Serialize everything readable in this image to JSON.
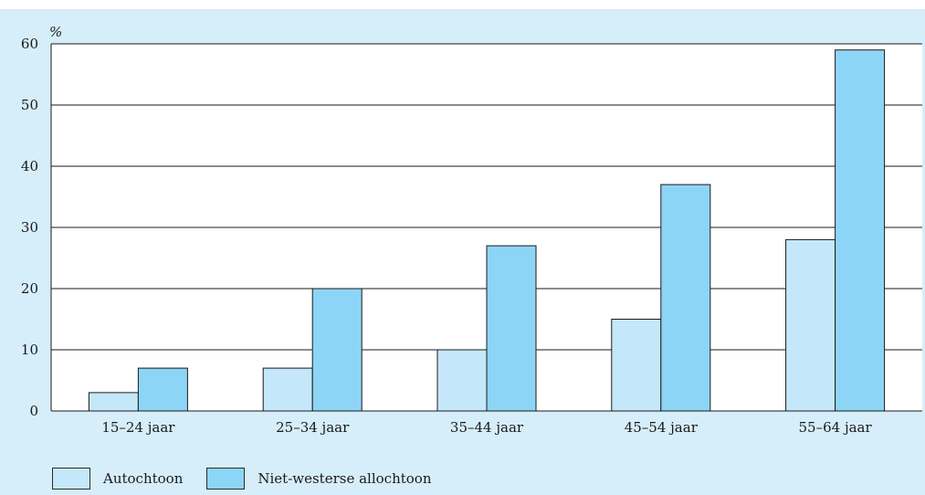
{
  "chart_data": {
    "type": "bar",
    "ylabel": "%",
    "ylim": [
      0,
      60
    ],
    "yticks": [
      0,
      10,
      20,
      30,
      40,
      50,
      60
    ],
    "categories": [
      "15–24 jaar",
      "25–34 jaar",
      "35–44 jaar",
      "45–54 jaar",
      "55–64 jaar"
    ],
    "series": [
      {
        "name": "Autochtoon",
        "color": "#c5e7fa",
        "values": [
          3,
          7,
          10,
          15,
          28
        ]
      },
      {
        "name": "Niet-westerse allochtoon",
        "color": "#8dd5f6",
        "values": [
          7,
          20,
          27,
          37,
          59
        ]
      }
    ],
    "grid": true,
    "legend_position": "bottom-left",
    "plot_background": "#ffffff",
    "frame_background": "#d6eef9"
  }
}
